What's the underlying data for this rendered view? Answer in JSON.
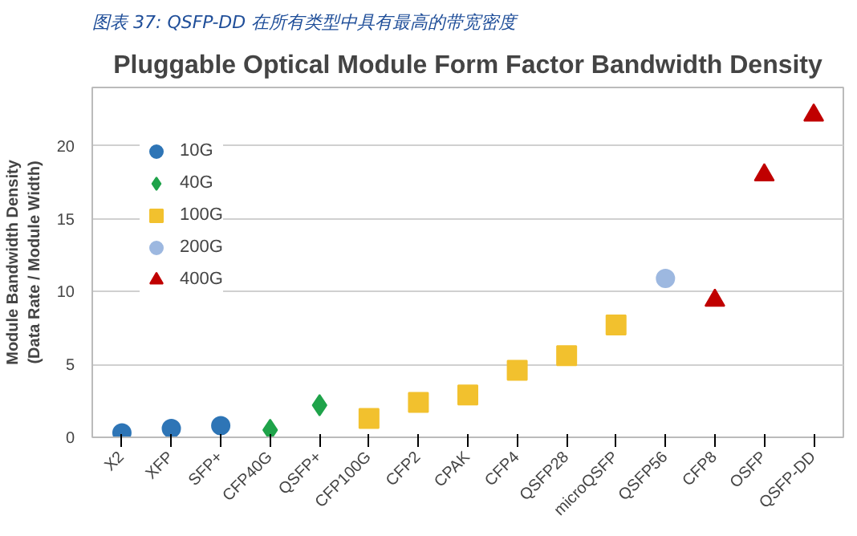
{
  "chart_data": {
    "type": "scatter",
    "title": "图表 37: QSFP-DD 在所有类型中具有最高的带宽密度",
    "subtitle": "Pluggable Optical Module Form Factor Bandwidth Density",
    "ylabel": "Module Bandwidth Density\n(Data Rate / Module Width)",
    "categories": [
      "X2",
      "XFP",
      "SFP+",
      "CFP40G",
      "QSFP+",
      "CFP100G",
      "CFP2",
      "CPAK",
      "CFP4",
      "QSFP28",
      "microQSFP",
      "QSFP56",
      "CFP8",
      "OSFP",
      "QSFP-DD"
    ],
    "series": [
      {
        "name": "10G",
        "color": "#2e75b6",
        "marker": "circle",
        "values": [
          0.3,
          0.6,
          0.8,
          null,
          null,
          null,
          null,
          null,
          null,
          null,
          null,
          null,
          null,
          null,
          null
        ]
      },
      {
        "name": "40G",
        "color": "#1fa34a",
        "marker": "diamond",
        "values": [
          null,
          null,
          null,
          0.5,
          2.2,
          null,
          null,
          null,
          null,
          null,
          null,
          null,
          null,
          null,
          null
        ]
      },
      {
        "name": "100G",
        "color": "#f2c12e",
        "marker": "square",
        "values": [
          null,
          null,
          null,
          null,
          null,
          1.3,
          2.4,
          2.9,
          4.6,
          5.6,
          7.7,
          null,
          null,
          null,
          null
        ]
      },
      {
        "name": "200G",
        "color": "#9db8e0",
        "marker": "circle",
        "values": [
          null,
          null,
          null,
          null,
          null,
          null,
          null,
          null,
          null,
          null,
          null,
          10.9,
          null,
          null,
          null
        ]
      },
      {
        "name": "400G",
        "color": "#c00000",
        "marker": "triangle",
        "values": [
          null,
          null,
          null,
          null,
          null,
          null,
          null,
          null,
          null,
          null,
          null,
          null,
          9.4,
          18,
          22.1
        ]
      }
    ],
    "ylim": [
      0,
      24
    ],
    "yticks": [
      0,
      5,
      10,
      15,
      20
    ],
    "grid": "y",
    "legend": "top left"
  }
}
